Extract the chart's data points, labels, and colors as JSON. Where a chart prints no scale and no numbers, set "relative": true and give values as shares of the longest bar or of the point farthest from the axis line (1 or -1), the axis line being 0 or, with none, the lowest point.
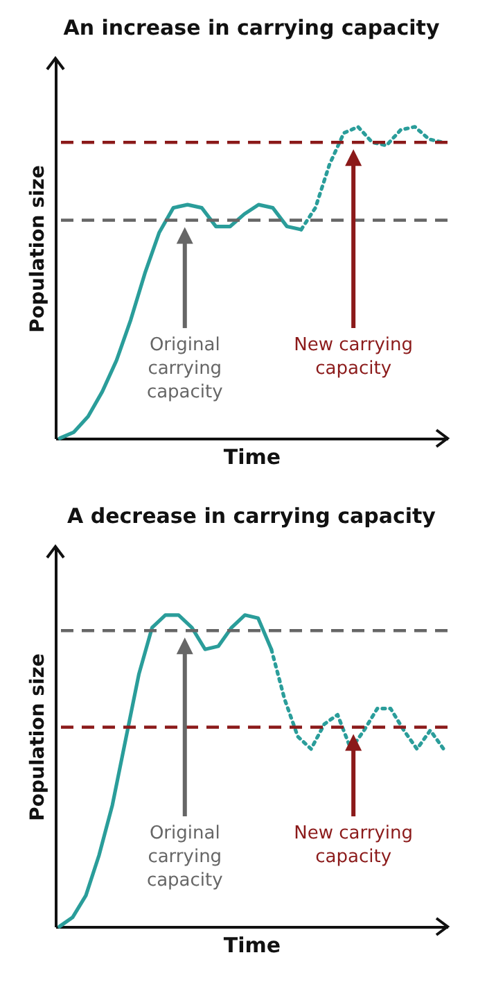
{
  "chart_data": [
    {
      "type": "line",
      "title": "An increase in carrying capacity",
      "xlabel": "Time",
      "ylabel": "Population size",
      "relative": true,
      "categories": [
        null,
        null,
        null,
        null,
        null,
        null,
        null,
        null,
        null,
        null,
        null,
        null,
        null,
        null,
        null,
        null,
        null,
        null,
        null,
        null,
        null,
        null,
        null,
        null,
        null,
        null,
        null,
        null
      ],
      "series": [
        {
          "color": "#2a9d9a",
          "line_style": "solid",
          "values": [
            0,
            0.02,
            0.07,
            0.15,
            0.25,
            0.38,
            0.53,
            0.66,
            0.74,
            0.75,
            0.74,
            0.68,
            0.68,
            0.72,
            0.75,
            0.74,
            0.68,
            0.67,
            null,
            null,
            null,
            null,
            null,
            null,
            null,
            null,
            null,
            null
          ]
        },
        {
          "color": "#2a9d9a",
          "line_style": "dotted",
          "values": [
            null,
            null,
            null,
            null,
            null,
            null,
            null,
            null,
            null,
            null,
            null,
            null,
            null,
            null,
            null,
            null,
            null,
            0.67,
            0.74,
            0.88,
            0.98,
            1.0,
            0.95,
            0.94,
            0.99,
            1.0,
            0.96,
            0.95
          ]
        }
      ],
      "ref_lines": [
        {
          "axis": "y",
          "value": 0.7,
          "label": "Original carrying capacity",
          "color": "#666666",
          "line_style": "dashed"
        },
        {
          "axis": "y",
          "value": 0.95,
          "label": "New carrying capacity",
          "color": "#8b1a1a",
          "line_style": "dashed"
        }
      ]
    },
    {
      "type": "line",
      "title": "A decrease in carrying capacity",
      "xlabel": "Time",
      "ylabel": "Population size",
      "relative": true,
      "categories": [
        null,
        null,
        null,
        null,
        null,
        null,
        null,
        null,
        null,
        null,
        null,
        null,
        null,
        null,
        null,
        null,
        null,
        null,
        null,
        null,
        null,
        null,
        null,
        null,
        null,
        null,
        null,
        null,
        null,
        null
      ],
      "series": [
        {
          "color": "#2a9d9a",
          "line_style": "solid",
          "values": [
            0,
            0.03,
            0.1,
            0.23,
            0.39,
            0.6,
            0.81,
            0.96,
            1.0,
            1.0,
            0.96,
            0.89,
            0.9,
            0.96,
            1.0,
            0.99,
            0.89,
            null,
            null,
            null,
            null,
            null,
            null,
            null,
            null,
            null,
            null,
            null,
            null,
            null
          ]
        },
        {
          "color": "#2a9d9a",
          "line_style": "dotted",
          "values": [
            null,
            null,
            null,
            null,
            null,
            null,
            null,
            null,
            null,
            null,
            null,
            null,
            null,
            null,
            null,
            null,
            0.89,
            0.73,
            0.61,
            0.57,
            0.65,
            0.68,
            0.57,
            0.63,
            0.7,
            0.7,
            0.63,
            0.57,
            0.63,
            0.57
          ]
        }
      ],
      "ref_lines": [
        {
          "axis": "y",
          "value": 0.95,
          "label": "Original carrying capacity",
          "color": "#666666",
          "line_style": "dashed"
        },
        {
          "axis": "y",
          "value": 0.64,
          "label": "New carrying capacity",
          "color": "#8b1a1a",
          "line_style": "dashed"
        }
      ]
    }
  ]
}
